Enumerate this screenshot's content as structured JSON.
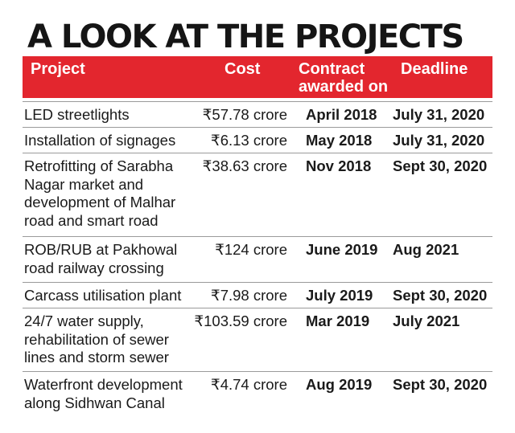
{
  "title": "A LOOK AT THE PROJECTS",
  "headers": {
    "project": "Project",
    "cost": "Cost",
    "awarded_line1": "Contract",
    "awarded_line2": "awarded on",
    "deadline": "Deadline"
  },
  "chart_data": {
    "type": "table",
    "title": "A LOOK AT THE PROJECTS",
    "columns": [
      "Project",
      "Cost",
      "Contract awarded on",
      "Deadline"
    ],
    "rows": [
      {
        "project": "LED streetlights",
        "cost": "₹57.78 crore",
        "awarded": "April 2018",
        "deadline": "July 31, 2020"
      },
      {
        "project": "Installation of signages",
        "cost": "₹6.13 crore",
        "awarded": "May 2018",
        "deadline": "July 31, 2020"
      },
      {
        "project": "Retrofitting of Sarabha Nagar market and development of Malhar road and smart road",
        "cost": "₹38.63 crore",
        "awarded": "Nov 2018",
        "deadline": "Sept 30, 2020"
      },
      {
        "project": "ROB/RUB at Pakhowal road railway crossing",
        "cost": "₹124 crore",
        "awarded": "June 2019",
        "deadline": "Aug 2021"
      },
      {
        "project": "Carcass utilisation plant",
        "cost": "₹7.98 crore",
        "awarded": "July 2019",
        "deadline": "Sept 30, 2020"
      },
      {
        "project": "24/7 water supply, rehabilitation of sewer lines and storm sewer",
        "cost": "₹103.59 crore",
        "awarded": "Mar 2019",
        "deadline": "July 2021"
      },
      {
        "project": "Waterfront development along Sidhwan Canal",
        "cost": "₹4.74 crore",
        "awarded": "Aug 2019",
        "deadline": "Sept 30, 2020"
      }
    ]
  }
}
